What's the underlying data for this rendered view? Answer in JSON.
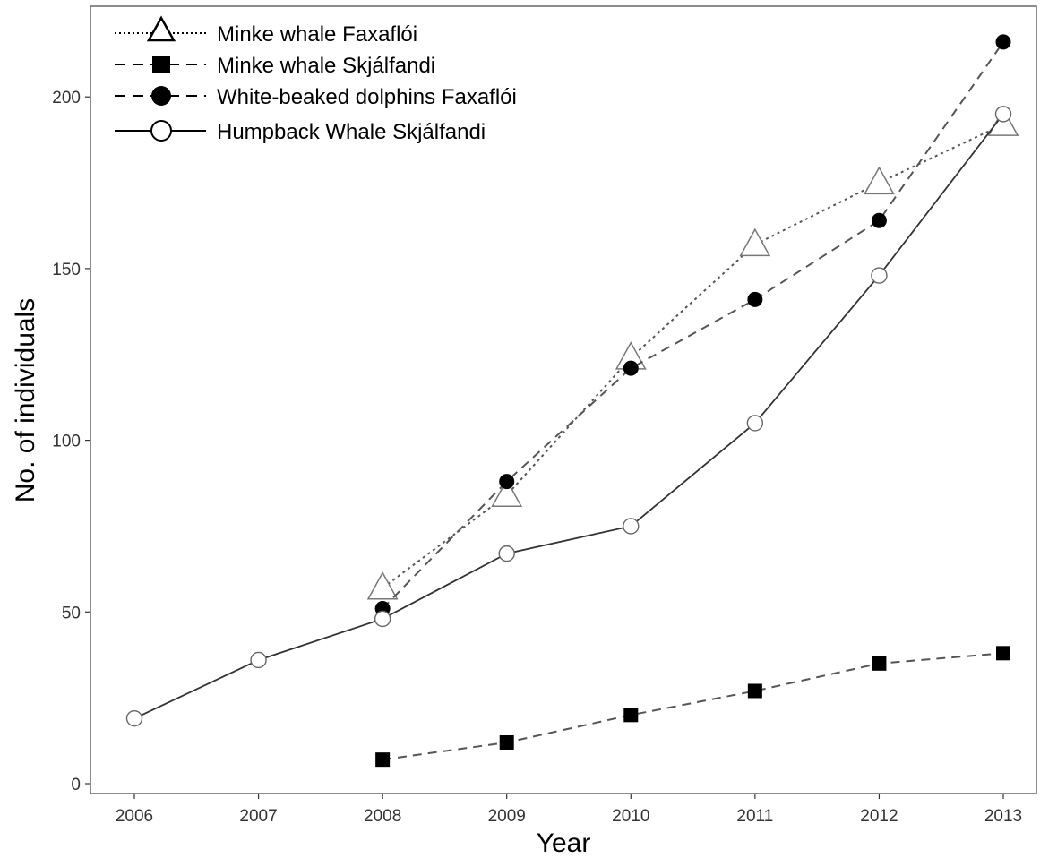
{
  "chart_data": {
    "type": "line",
    "xlabel": "Year",
    "ylabel": "No. of individuals",
    "xlim": [
      2006,
      2013
    ],
    "ylim": [
      0,
      220
    ],
    "x_ticks": [
      2006,
      2007,
      2008,
      2009,
      2010,
      2011,
      2012,
      2013
    ],
    "y_ticks": [
      0,
      50,
      100,
      150,
      200
    ],
    "grid": false,
    "legend_position": "top-left",
    "series": [
      {
        "name": "Minke whale Faxaflói",
        "line_style": "dotted",
        "marker": "open-triangle",
        "color": "#555555",
        "x": [
          2008,
          2009,
          2010,
          2011,
          2012,
          2013
        ],
        "y": [
          57,
          84,
          124,
          157,
          175,
          192
        ]
      },
      {
        "name": "Minke whale Skjálfandi",
        "line_style": "dashed",
        "marker": "filled-square",
        "color": "#555555",
        "x": [
          2008,
          2009,
          2010,
          2011,
          2012,
          2013
        ],
        "y": [
          7,
          12,
          20,
          27,
          35,
          38
        ]
      },
      {
        "name": "White-beaked dolphins Faxaflói",
        "line_style": "dashed",
        "marker": "filled-circle",
        "color": "#555555",
        "x": [
          2008,
          2009,
          2010,
          2011,
          2012,
          2013
        ],
        "y": [
          51,
          88,
          121,
          141,
          164,
          216
        ]
      },
      {
        "name": "Humpback Whale Skjálfandi",
        "line_style": "solid",
        "marker": "open-circle",
        "color": "#333333",
        "x": [
          2006,
          2007,
          2008,
          2009,
          2010,
          2011,
          2012,
          2013
        ],
        "y": [
          19,
          36,
          48,
          67,
          75,
          105,
          148,
          195
        ]
      }
    ]
  }
}
